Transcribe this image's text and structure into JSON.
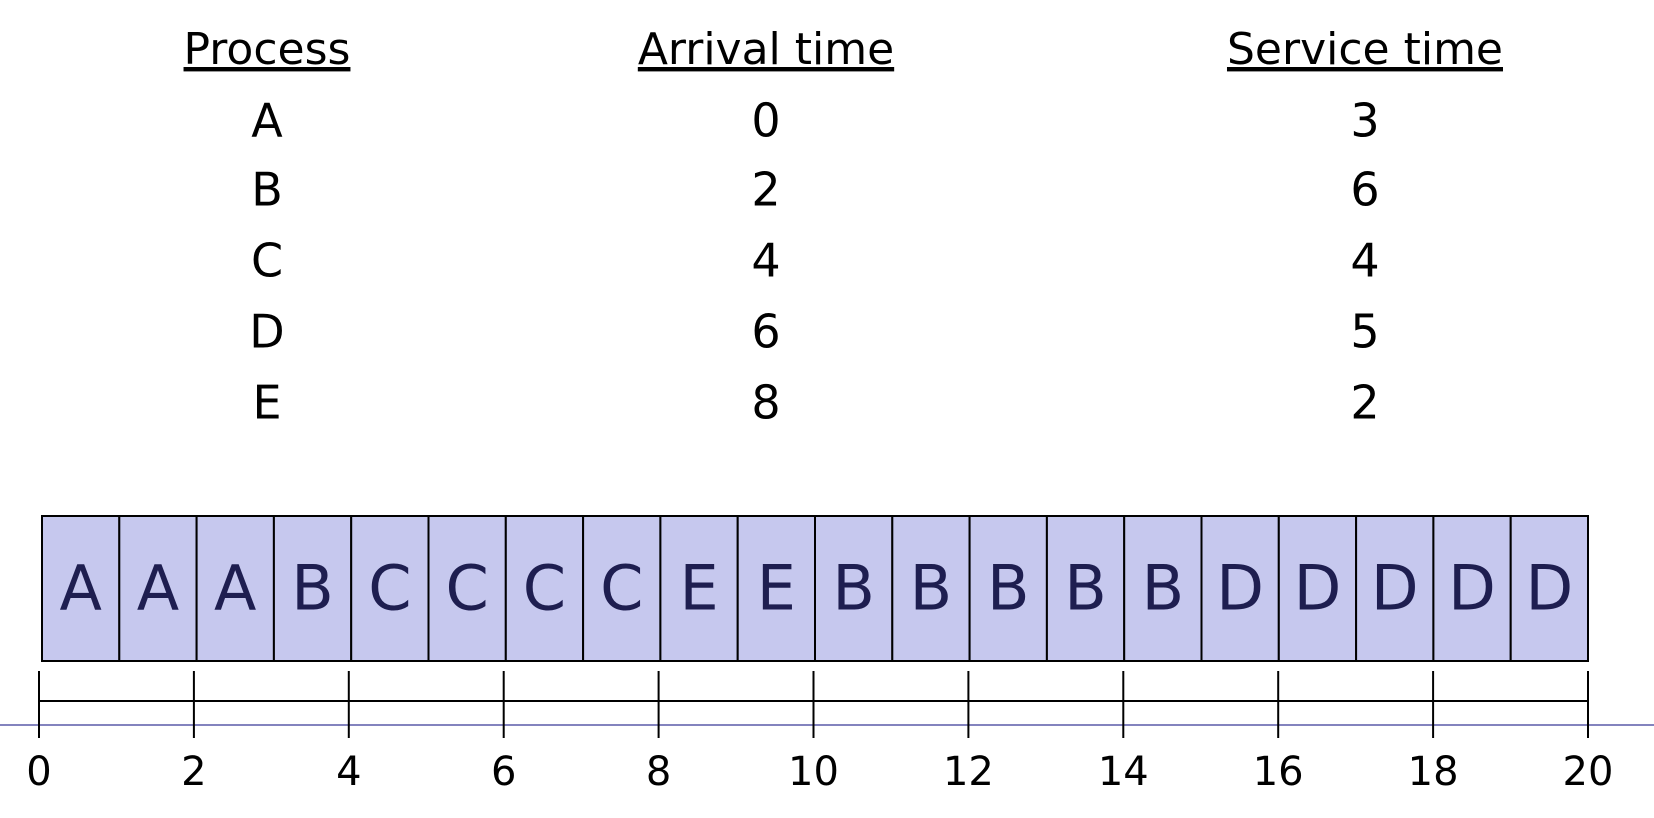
{
  "table": {
    "headers": [
      "Process",
      "Arrival time",
      "Service time"
    ],
    "rows": [
      [
        "A",
        "0",
        "3"
      ],
      [
        "B",
        "2",
        "6"
      ],
      [
        "C",
        "4",
        "4"
      ],
      [
        "D",
        "6",
        "5"
      ],
      [
        "E",
        "8",
        "2"
      ]
    ]
  },
  "gantt": {
    "cells": [
      "A",
      "A",
      "A",
      "B",
      "C",
      "C",
      "C",
      "C",
      "E",
      "E",
      "B",
      "B",
      "B",
      "B",
      "B",
      "D",
      "D",
      "D",
      "D",
      "D"
    ]
  },
  "timeline": {
    "ticks": [
      0,
      2,
      4,
      6,
      8,
      10,
      12,
      14,
      16,
      18,
      20
    ]
  }
}
